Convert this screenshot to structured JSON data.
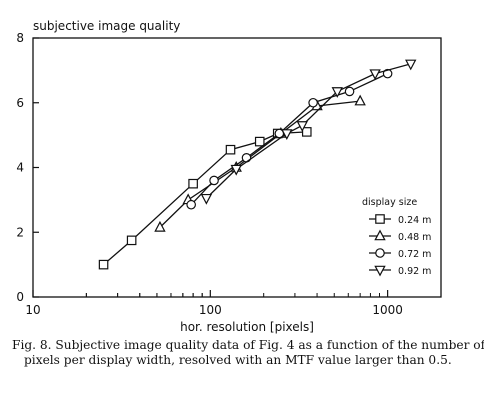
{
  "chart_data": {
    "type": "line",
    "title": "subjective image quality",
    "xlabel": "hor. resolution [pixels]",
    "ylabel": "",
    "xscale": "log",
    "xlim": [
      10,
      2000
    ],
    "ylim": [
      0,
      8
    ],
    "xticks": [
      10,
      100,
      1000
    ],
    "xtick_labels": [
      "10",
      "100",
      "1000"
    ],
    "yticks": [
      0,
      2,
      4,
      6,
      8
    ],
    "ytick_labels": [
      "0",
      "2",
      "4",
      "6",
      "8"
    ],
    "grid": false,
    "legend_title": "display size",
    "legend_position": "lower-right",
    "series": [
      {
        "name": "0.24 m",
        "marker": "square",
        "x": [
          25,
          36,
          80,
          130,
          190,
          240,
          350
        ],
        "y": [
          1.0,
          1.75,
          3.5,
          4.55,
          4.8,
          5.05,
          5.1
        ]
      },
      {
        "name": "0.48 m",
        "marker": "triangle-up",
        "x": [
          52,
          75,
          140,
          250,
          400,
          700
        ],
        "y": [
          2.15,
          3.0,
          4.0,
          5.05,
          5.9,
          6.05
        ]
      },
      {
        "name": "0.72 m",
        "marker": "circle",
        "x": [
          78,
          105,
          160,
          245,
          380,
          610,
          1000
        ],
        "y": [
          2.85,
          3.6,
          4.3,
          5.05,
          6.0,
          6.35,
          6.9
        ]
      },
      {
        "name": "0.92 m",
        "marker": "triangle-down",
        "x": [
          95,
          140,
          270,
          330,
          520,
          850,
          1350
        ],
        "y": [
          3.05,
          3.95,
          5.05,
          5.3,
          6.35,
          6.9,
          7.2
        ]
      }
    ]
  },
  "caption": "Fig. 8.  Subjective image quality data of Fig. 4 as a function of the number of pixels per display width, resolved with an MTF value larger than 0.5."
}
